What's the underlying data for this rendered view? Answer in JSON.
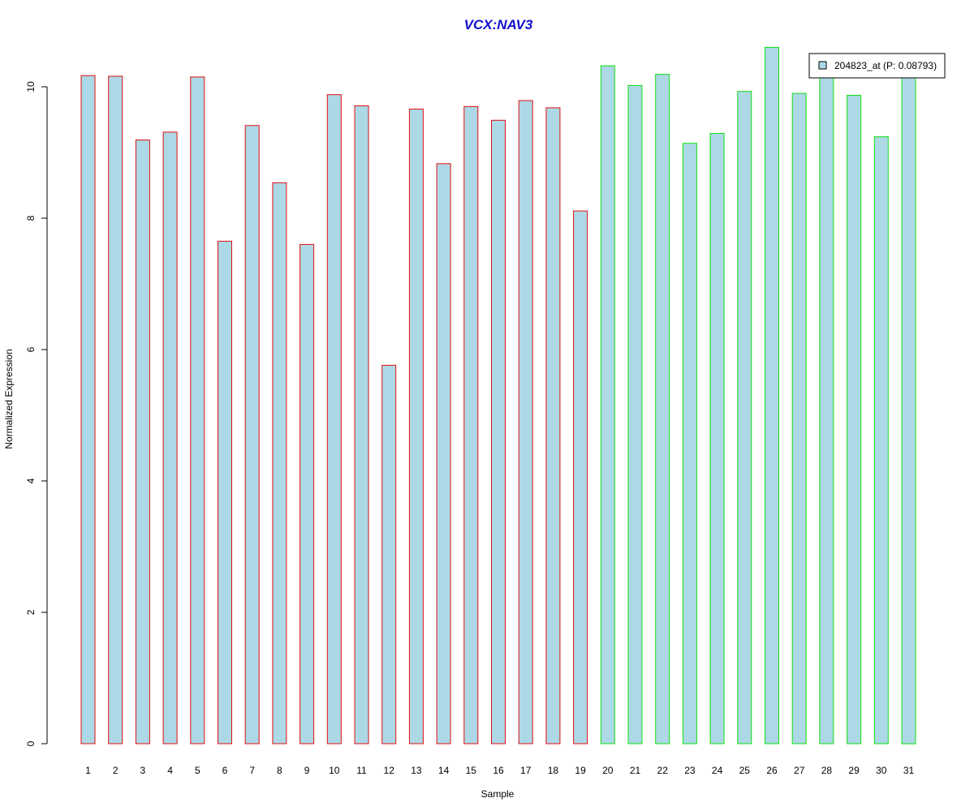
{
  "chart_data": {
    "type": "bar",
    "title": "VCX:NAV3",
    "xlabel": "Sample",
    "ylabel": "Normalized Expression",
    "ylim": [
      0,
      10.6
    ],
    "yticks": [
      0,
      2,
      4,
      6,
      8,
      10
    ],
    "grid": false,
    "categories": [
      "1",
      "2",
      "3",
      "4",
      "5",
      "6",
      "7",
      "8",
      "9",
      "10",
      "11",
      "12",
      "13",
      "14",
      "15",
      "16",
      "17",
      "18",
      "19",
      "20",
      "21",
      "22",
      "23",
      "24",
      "25",
      "26",
      "27",
      "28",
      "29",
      "30",
      "31"
    ],
    "series": [
      {
        "name": "204823_at (P: 0.08793)",
        "values": [
          10.17,
          10.16,
          9.19,
          9.31,
          10.15,
          7.65,
          9.41,
          8.54,
          7.6,
          9.88,
          9.71,
          5.76,
          9.66,
          8.83,
          9.7,
          9.49,
          9.79,
          9.68,
          8.11,
          10.32,
          10.02,
          10.19,
          9.14,
          9.29,
          9.93,
          10.6,
          9.9,
          10.2,
          9.87,
          9.24,
          10.25
        ]
      }
    ],
    "groups": [
      {
        "samples": [
          1,
          19
        ],
        "border_color": "#e01010"
      },
      {
        "samples": [
          20,
          31
        ],
        "border_color": "#10e010"
      }
    ],
    "colors": {
      "bar_fill": "#add8e6",
      "title": "#1010cc",
      "group_a_border": "#e01010",
      "group_b_border": "#10e010"
    },
    "legend": {
      "placement": "top-right",
      "label": "204823_at (P: 0.08793)"
    }
  }
}
